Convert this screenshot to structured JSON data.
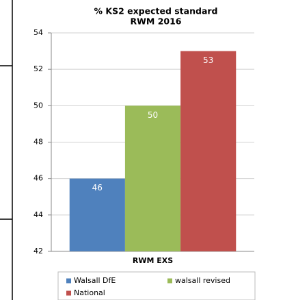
{
  "chart_data": {
    "type": "bar",
    "title": [
      "% KS2 expected standard",
      "RWM 2016"
    ],
    "categories": [
      "RWM EXS"
    ],
    "series": [
      {
        "name": "Walsall DfE",
        "color": "#4f81bd",
        "values": [
          46
        ]
      },
      {
        "name": "walsall revised",
        "color": "#9bbb59",
        "values": [
          50
        ]
      },
      {
        "name": "National",
        "color": "#c0504d",
        "values": [
          53
        ]
      }
    ],
    "ylim": [
      42,
      54
    ],
    "yticks": [
      42,
      44,
      46,
      48,
      50,
      52,
      54
    ],
    "grid": true,
    "legend": "bottom"
  }
}
